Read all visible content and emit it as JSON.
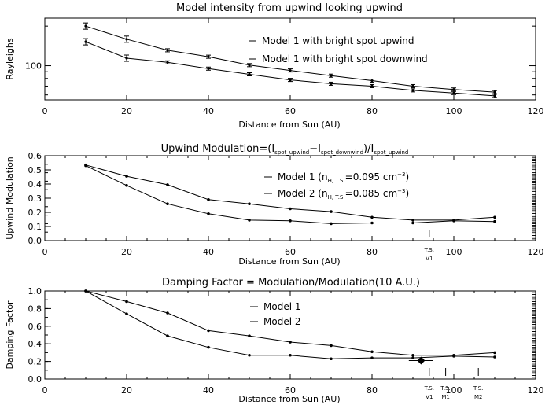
{
  "chart_data": [
    {
      "type": "line",
      "title": "Model intensity from upwind looking upwind",
      "xlabel": "Distance from Sun (AU)",
      "ylabel": "Rayleighs",
      "xlim": [
        0,
        120
      ],
      "ylim_log": [
        55,
        230
      ],
      "log_y": true,
      "x_ticks": [
        0,
        20,
        40,
        60,
        80,
        100,
        120
      ],
      "y_ticks": [
        100
      ],
      "series": [
        {
          "name": "Model 1 with bright spot upwind",
          "x": [
            10,
            20,
            30,
            40,
            50,
            60,
            70,
            80,
            90,
            100,
            110
          ],
          "values": [
            200,
            159,
            131,
            117,
            101,
            92,
            84,
            77,
            70,
            66,
            63
          ],
          "error_bars": true
        },
        {
          "name": "Model 1 with bright spot downwind",
          "x": [
            10,
            20,
            30,
            40,
            50,
            60,
            70,
            80,
            90,
            100,
            110
          ],
          "values": [
            152,
            114,
            106,
            95,
            86,
            78,
            73,
            70,
            65,
            62,
            59
          ],
          "error_bars": true
        }
      ],
      "legend_placement": "top-right"
    },
    {
      "type": "line",
      "title_parts": {
        "prefix": "Upwind Modulation=(I",
        "sub1": "spot_upwind",
        "mid": "−I",
        "sub2": "spot_downwind",
        "mid2": ")/I",
        "sub3": "spot_upwind"
      },
      "xlabel": "Distance from Sun (AU)",
      "ylabel": "Upwind Modulation",
      "xlim": [
        0,
        120
      ],
      "ylim": [
        0.0,
        0.6
      ],
      "x_ticks": [
        0,
        20,
        40,
        60,
        80,
        100,
        120
      ],
      "y_ticks": [
        "0.0",
        "0.1",
        "0.2",
        "0.3",
        "0.4",
        "0.5",
        "0.6"
      ],
      "series": [
        {
          "legend": {
            "prefix": "Model 1 (n",
            "sub": "H, T.S.",
            "value": "=0.095 cm",
            "sup": "−3",
            "suffix": ")"
          },
          "x": [
            10,
            20,
            30,
            40,
            50,
            60,
            70,
            80,
            90,
            100,
            110
          ],
          "values": [
            0.535,
            0.455,
            0.395,
            0.29,
            0.26,
            0.225,
            0.205,
            0.165,
            0.145,
            0.145,
            0.165
          ]
        },
        {
          "legend": {
            "prefix": "Model 2 (n",
            "sub": "H, T.S.",
            "value": "=0.085 cm",
            "sup": "−3",
            "suffix": ")"
          },
          "x": [
            10,
            20,
            30,
            40,
            50,
            60,
            70,
            80,
            90,
            100,
            110
          ],
          "values": [
            0.53,
            0.39,
            0.26,
            0.19,
            0.145,
            0.14,
            0.12,
            0.125,
            0.125,
            0.14,
            0.135
          ]
        }
      ],
      "annotations": [
        {
          "label_lines": [
            "T.S.",
            "V1"
          ],
          "x": 94
        }
      ],
      "legend_placement": "top-right"
    },
    {
      "type": "line",
      "title": "Damping Factor = Modulation/Modulation(10 A.U.)",
      "xlabel": "Distance from Sun (AU)",
      "ylabel": "Damping Factor",
      "xlim": [
        0,
        120
      ],
      "ylim": [
        0.0,
        1.0
      ],
      "x_ticks": [
        0,
        20,
        40,
        60,
        80,
        100,
        120
      ],
      "y_ticks": [
        "0.0",
        "0.2",
        "0.4",
        "0.6",
        "0.8",
        "1.0"
      ],
      "series": [
        {
          "name": "Model 1",
          "x": [
            10,
            20,
            30,
            40,
            50,
            60,
            70,
            80,
            90,
            100,
            110
          ],
          "values": [
            1.0,
            0.88,
            0.75,
            0.55,
            0.49,
            0.42,
            0.38,
            0.31,
            0.27,
            0.27,
            0.3
          ]
        },
        {
          "name": "Model 2",
          "x": [
            10,
            20,
            30,
            40,
            50,
            60,
            70,
            80,
            90,
            100,
            110
          ],
          "values": [
            1.0,
            0.74,
            0.49,
            0.36,
            0.27,
            0.27,
            0.23,
            0.24,
            0.24,
            0.26,
            0.25
          ]
        }
      ],
      "observation": {
        "x": 92,
        "y": 0.21,
        "xerr": 3
      },
      "annotations": [
        {
          "label_lines": [
            "T.S.",
            "V1"
          ],
          "x": 94
        },
        {
          "label_lines": [
            "T.S.",
            "M1"
          ],
          "x": 98
        },
        {
          "label_lines": [
            "T.S.",
            "M2"
          ],
          "x": 106
        }
      ],
      "legend_placement": "top-center"
    }
  ]
}
